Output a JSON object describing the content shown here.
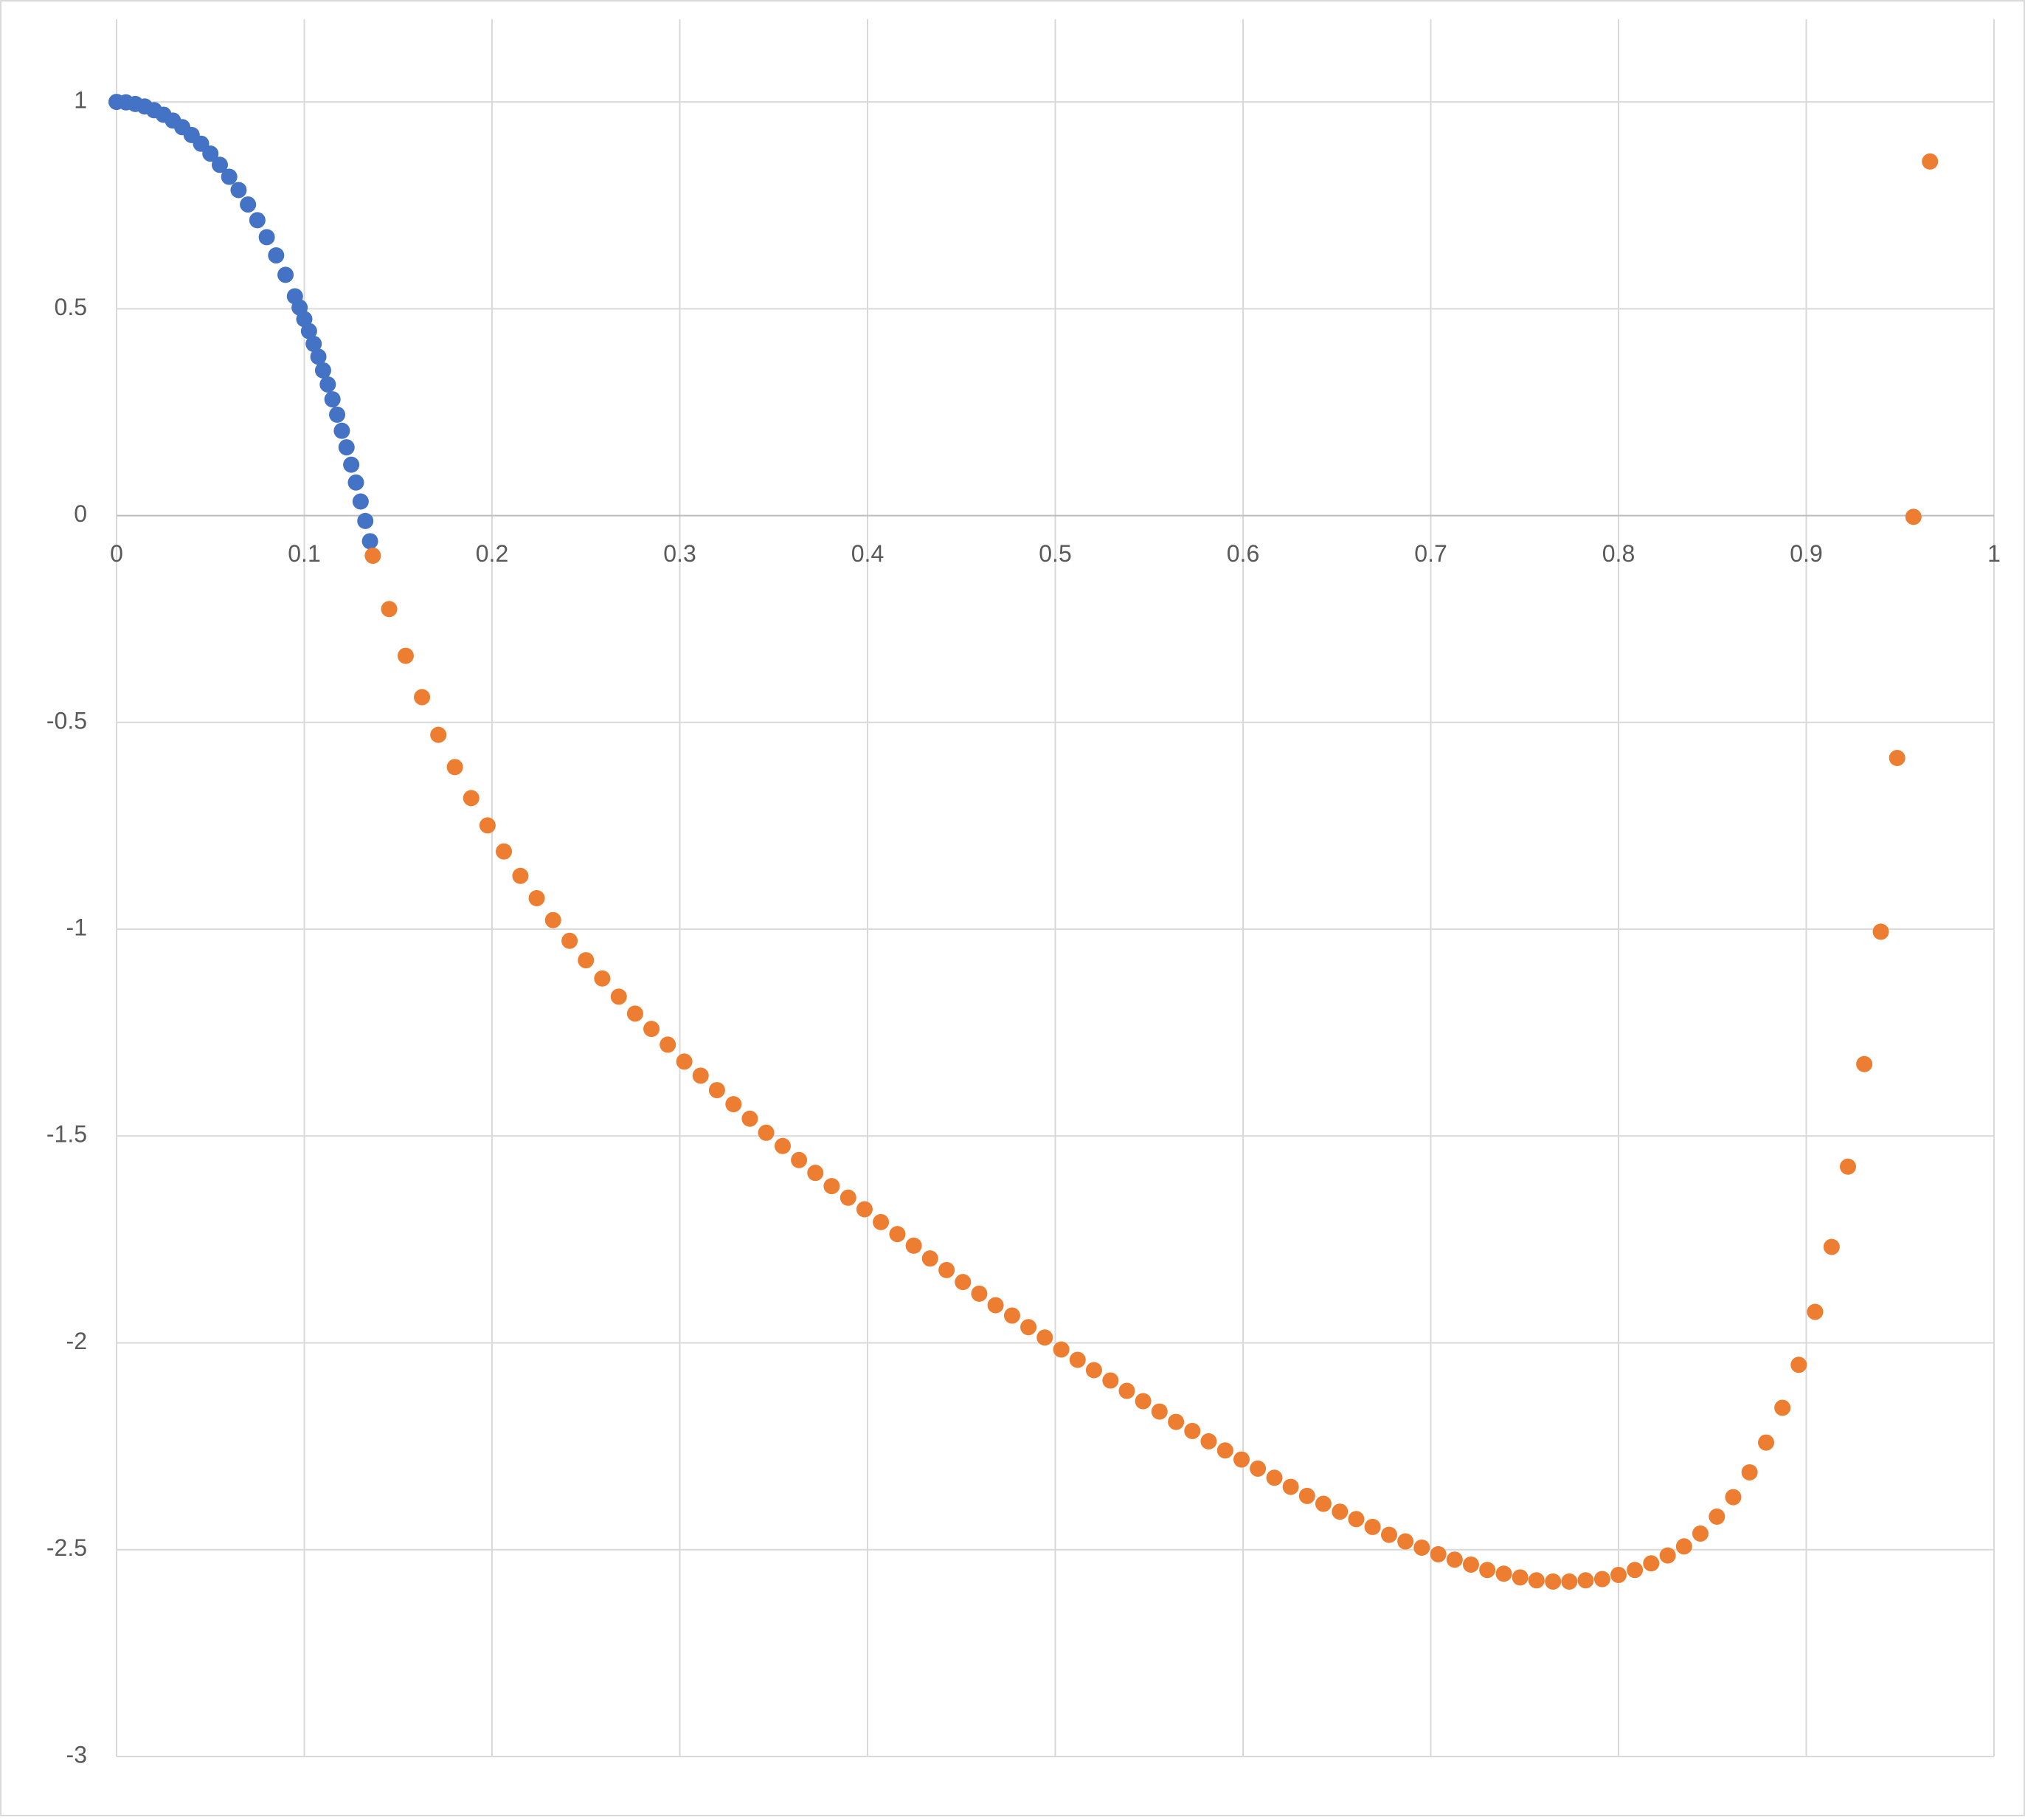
{
  "chart_data": {
    "type": "scatter",
    "xlim": [
      0,
      1
    ],
    "xticks": [
      0,
      0.1,
      0.2,
      0.3,
      0.4,
      0.5,
      0.6,
      0.7,
      0.8,
      0.9,
      1
    ],
    "ylim": [
      -3,
      1.2
    ],
    "yticks": [
      -3,
      -2.5,
      -2,
      -1.5,
      -1,
      -0.5,
      0,
      0.5,
      1
    ],
    "grid": true,
    "series": [
      {
        "color": "#4472c4",
        "x": [
          0,
          0.005,
          0.01,
          0.015,
          0.02,
          0.025,
          0.03,
          0.035,
          0.04,
          0.045,
          0.05,
          0.055,
          0.06,
          0.065,
          0.07,
          0.075,
          0.08,
          0.085,
          0.09,
          0.095,
          0.0975,
          0.1,
          0.1025,
          0.105,
          0.1075,
          0.11,
          0.1125,
          0.115,
          0.1175,
          0.12,
          0.1225,
          0.125,
          0.1275,
          0.13,
          0.1325,
          0.135
        ],
        "values": [
          1,
          0.999,
          0.995,
          0.989,
          0.98,
          0.969,
          0.955,
          0.939,
          0.92,
          0.899,
          0.875,
          0.848,
          0.819,
          0.787,
          0.752,
          0.714,
          0.673,
          0.629,
          0.582,
          0.53,
          0.503,
          0.475,
          0.446,
          0.415,
          0.384,
          0.351,
          0.317,
          0.281,
          0.244,
          0.205,
          0.165,
          0.123,
          0.08,
          0.034,
          -0.013,
          -0.062
        ]
      },
      {
        "color": "#ed7d31",
        "x": [
          0.1365,
          0.1452,
          0.154,
          0.1627,
          0.1714,
          0.1802,
          0.1889,
          0.1976,
          0.2063,
          0.2151,
          0.2238,
          0.2325,
          0.2413,
          0.25,
          0.2587,
          0.2675,
          0.2762,
          0.2849,
          0.2936,
          0.3024,
          0.3111,
          0.3198,
          0.3286,
          0.3373,
          0.346,
          0.3548,
          0.3635,
          0.3722,
          0.3809,
          0.3897,
          0.3984,
          0.4071,
          0.4159,
          0.4246,
          0.4333,
          0.4421,
          0.4508,
          0.4595,
          0.4682,
          0.477,
          0.4857,
          0.4944,
          0.5032,
          0.5119,
          0.5206,
          0.5294,
          0.5381,
          0.5468,
          0.5555,
          0.5643,
          0.573,
          0.5817,
          0.5905,
          0.5992,
          0.6079,
          0.6167,
          0.6254,
          0.6341,
          0.6428,
          0.6516,
          0.6603,
          0.669,
          0.6778,
          0.6865,
          0.6952,
          0.704,
          0.7127,
          0.7214,
          0.7301,
          0.7389,
          0.7476,
          0.7563,
          0.7651,
          0.7738,
          0.7825,
          0.7913,
          0.8,
          0.8087,
          0.8174,
          0.8262,
          0.8349,
          0.8436,
          0.8524,
          0.8611,
          0.8698,
          0.8786,
          0.8873,
          0.896,
          0.9047,
          0.9135,
          0.9222,
          0.9309,
          0.9397,
          0.9484,
          0.9571,
          0.9659
        ],
        "values": [
          -0.097,
          -0.226,
          -0.339,
          -0.439,
          -0.53,
          -0.608,
          -0.683,
          -0.749,
          -0.812,
          -0.871,
          -0.925,
          -0.978,
          -1.028,
          -1.075,
          -1.119,
          -1.163,
          -1.204,
          -1.241,
          -1.279,
          -1.32,
          -1.354,
          -1.389,
          -1.423,
          -1.458,
          -1.492,
          -1.524,
          -1.558,
          -1.589,
          -1.621,
          -1.649,
          -1.677,
          -1.708,
          -1.737,
          -1.765,
          -1.796,
          -1.824,
          -1.853,
          -1.881,
          -1.909,
          -1.934,
          -1.962,
          -1.987,
          -2.016,
          -2.041,
          -2.066,
          -2.091,
          -2.116,
          -2.141,
          -2.166,
          -2.191,
          -2.213,
          -2.238,
          -2.26,
          -2.282,
          -2.304,
          -2.326,
          -2.348,
          -2.37,
          -2.389,
          -2.408,
          -2.426,
          -2.445,
          -2.464,
          -2.48,
          -2.495,
          -2.511,
          -2.524,
          -2.536,
          -2.549,
          -2.558,
          -2.567,
          -2.574,
          -2.577,
          -2.577,
          -2.574,
          -2.571,
          -2.561,
          -2.549,
          -2.533,
          -2.514,
          -2.492,
          -2.461,
          -2.42,
          -2.373,
          -2.313,
          -2.241,
          -2.157,
          -2.053,
          -1.925,
          -1.768,
          -1.574,
          -1.326,
          -1.006,
          -0.586,
          -0.003,
          0.856
        ]
      }
    ]
  }
}
